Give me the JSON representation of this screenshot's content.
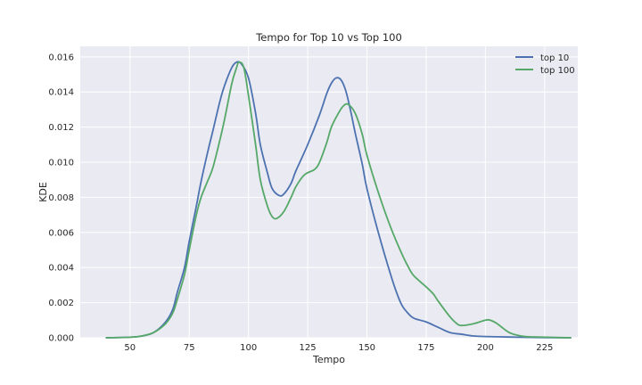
{
  "chart_data": {
    "type": "line",
    "title": "Tempo for Top 10 vs Top 100",
    "xlabel": "Tempo",
    "ylabel": "KDE",
    "xlim": [
      29,
      239
    ],
    "ylim": [
      0,
      0.0166
    ],
    "xticks": [
      50,
      75,
      100,
      125,
      150,
      175,
      200,
      225
    ],
    "yticks": [
      0,
      0.002,
      0.004,
      0.006,
      0.008,
      0.01,
      0.012,
      0.014,
      0.016
    ],
    "ytick_labels": [
      "0.000",
      "0.002",
      "0.004",
      "0.006",
      "0.008",
      "0.010",
      "0.012",
      "0.014",
      "0.016"
    ],
    "grid": true,
    "legend_position": "top-right",
    "series": [
      {
        "name": "top 10",
        "color": "#4c72b0",
        "points": [
          [
            40,
            0
          ],
          [
            50,
            3e-05
          ],
          [
            55,
            0.0001
          ],
          [
            60,
            0.0003
          ],
          [
            65,
            0.0009
          ],
          [
            68,
            0.0016
          ],
          [
            70,
            0.0026
          ],
          [
            73,
            0.004
          ],
          [
            75,
            0.0055
          ],
          [
            78,
            0.0075
          ],
          [
            80,
            0.0089
          ],
          [
            83,
            0.0107
          ],
          [
            85,
            0.0118
          ],
          [
            88,
            0.0135
          ],
          [
            90,
            0.0144
          ],
          [
            93,
            0.0154
          ],
          [
            95,
            0.0157
          ],
          [
            97,
            0.0156
          ],
          [
            100,
            0.0148
          ],
          [
            103,
            0.0128
          ],
          [
            105,
            0.011
          ],
          [
            108,
            0.0094
          ],
          [
            110,
            0.0085
          ],
          [
            113,
            0.0081
          ],
          [
            115,
            0.0082
          ],
          [
            118,
            0.0088
          ],
          [
            120,
            0.0095
          ],
          [
            125,
            0.011
          ],
          [
            130,
            0.0127
          ],
          [
            133,
            0.0139
          ],
          [
            135,
            0.0145
          ],
          [
            137,
            0.0148
          ],
          [
            139,
            0.0147
          ],
          [
            141,
            0.0141
          ],
          [
            143,
            0.013
          ],
          [
            145,
            0.0117
          ],
          [
            148,
            0.0099
          ],
          [
            150,
            0.0085
          ],
          [
            155,
            0.0059
          ],
          [
            160,
            0.0036
          ],
          [
            163,
            0.0024
          ],
          [
            165,
            0.0018
          ],
          [
            168,
            0.0013
          ],
          [
            170,
            0.0011
          ],
          [
            175,
            0.0009
          ],
          [
            180,
            0.0006
          ],
          [
            185,
            0.0003
          ],
          [
            190,
            0.0002
          ],
          [
            195,
            0.0001
          ],
          [
            200,
            7e-05
          ],
          [
            210,
            4e-05
          ],
          [
            220,
            2e-05
          ],
          [
            236,
            0.0
          ]
        ]
      },
      {
        "name": "top 100",
        "color": "#55a868",
        "points": [
          [
            40,
            0
          ],
          [
            50,
            3e-05
          ],
          [
            55,
            0.0001
          ],
          [
            60,
            0.0003
          ],
          [
            65,
            0.0008
          ],
          [
            68,
            0.0014
          ],
          [
            70,
            0.0022
          ],
          [
            73,
            0.0036
          ],
          [
            75,
            0.005
          ],
          [
            78,
            0.007
          ],
          [
            80,
            0.008
          ],
          [
            83,
            0.009
          ],
          [
            85,
            0.0097
          ],
          [
            88,
            0.0113
          ],
          [
            90,
            0.0125
          ],
          [
            93,
            0.0145
          ],
          [
            95,
            0.0154
          ],
          [
            96,
            0.0157
          ],
          [
            98,
            0.0154
          ],
          [
            100,
            0.0138
          ],
          [
            103,
            0.011
          ],
          [
            105,
            0.009
          ],
          [
            108,
            0.0075
          ],
          [
            110,
            0.0069
          ],
          [
            112,
            0.0068
          ],
          [
            115,
            0.0072
          ],
          [
            118,
            0.008
          ],
          [
            120,
            0.0086
          ],
          [
            123,
            0.0092
          ],
          [
            125,
            0.0094
          ],
          [
            128,
            0.0096
          ],
          [
            130,
            0.01
          ],
          [
            133,
            0.0111
          ],
          [
            135,
            0.012
          ],
          [
            138,
            0.0128
          ],
          [
            140,
            0.0132
          ],
          [
            142,
            0.0133
          ],
          [
            145,
            0.0128
          ],
          [
            148,
            0.0116
          ],
          [
            150,
            0.0104
          ],
          [
            155,
            0.0082
          ],
          [
            160,
            0.0063
          ],
          [
            165,
            0.0047
          ],
          [
            168,
            0.0039
          ],
          [
            170,
            0.0035
          ],
          [
            175,
            0.0029
          ],
          [
            178,
            0.0025
          ],
          [
            180,
            0.0021
          ],
          [
            185,
            0.0012
          ],
          [
            188,
            0.0008
          ],
          [
            190,
            0.0007
          ],
          [
            195,
            0.0008
          ],
          [
            200,
            0.001
          ],
          [
            202,
            0.001
          ],
          [
            205,
            0.0008
          ],
          [
            210,
            0.0003
          ],
          [
            215,
            0.0001
          ],
          [
            220,
            5e-05
          ],
          [
            236,
            0.0
          ]
        ]
      }
    ]
  }
}
